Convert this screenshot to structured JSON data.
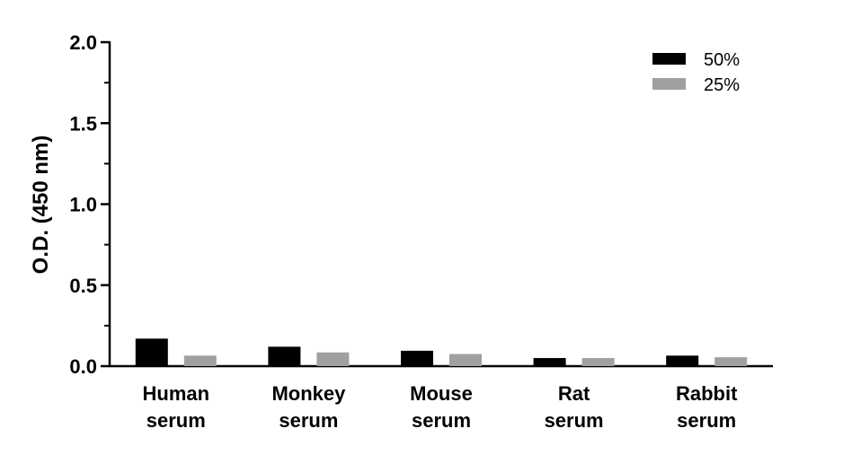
{
  "chart_data": {
    "type": "bar",
    "title": "",
    "xlabel": "",
    "ylabel": "O.D. (450 nm)",
    "ylim": [
      0,
      2.0
    ],
    "yticks": [
      "0.0",
      "0.5",
      "1.0",
      "1.5",
      "2.0"
    ],
    "categories": [
      [
        "Human",
        "serum"
      ],
      [
        "Monkey",
        "serum"
      ],
      [
        "Mouse",
        "serum"
      ],
      [
        "Rat",
        "serum"
      ],
      [
        "Rabbit",
        "serum"
      ]
    ],
    "series": [
      {
        "name": "50%",
        "color": "#000000",
        "values": [
          0.17,
          0.12,
          0.095,
          0.05,
          0.065
        ]
      },
      {
        "name": "25%",
        "color": "#a0a0a0",
        "values": [
          0.065,
          0.085,
          0.075,
          0.05,
          0.055
        ]
      }
    ],
    "legend_position": "top-right",
    "grid": false
  }
}
